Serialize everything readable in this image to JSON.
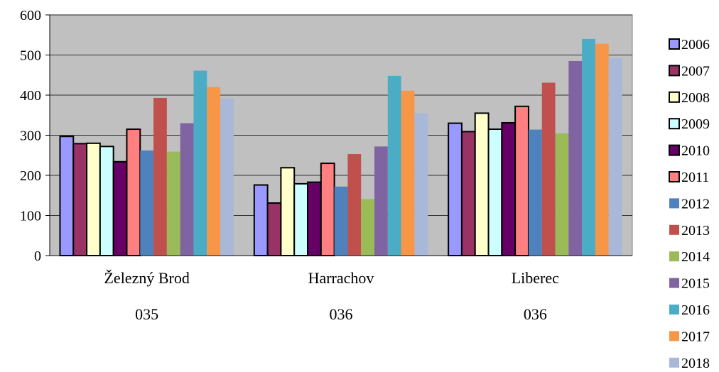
{
  "chart_data": {
    "type": "bar",
    "categories": [
      "Železný Brod",
      "Harrachov",
      "Liberec"
    ],
    "category_codes": [
      "035",
      "036",
      "036"
    ],
    "ylim": [
      0,
      600
    ],
    "yticks": [
      0,
      100,
      200,
      300,
      400,
      500,
      600
    ],
    "grid": true,
    "legend_position": "right",
    "plot_background": "#c0c0c0",
    "series": [
      {
        "name": "2006",
        "color": "#9999ff",
        "outlined": true,
        "values": [
          297,
          176,
          330
        ]
      },
      {
        "name": "2007",
        "color": "#993366",
        "outlined": true,
        "values": [
          279,
          131,
          309
        ]
      },
      {
        "name": "2008",
        "color": "#ffffcc",
        "outlined": true,
        "values": [
          280,
          219,
          355
        ]
      },
      {
        "name": "2009",
        "color": "#ccffff",
        "outlined": true,
        "values": [
          272,
          179,
          315
        ]
      },
      {
        "name": "2010",
        "color": "#660066",
        "outlined": true,
        "values": [
          234,
          183,
          331
        ]
      },
      {
        "name": "2011",
        "color": "#ff8080",
        "outlined": true,
        "values": [
          315,
          230,
          372
        ]
      },
      {
        "name": "2012",
        "color": "#4f81bd",
        "outlined": false,
        "values": [
          262,
          172,
          314
        ]
      },
      {
        "name": "2013",
        "color": "#c0504d",
        "outlined": false,
        "values": [
          393,
          253,
          431
        ]
      },
      {
        "name": "2014",
        "color": "#9bbb59",
        "outlined": false,
        "values": [
          259,
          141,
          305
        ]
      },
      {
        "name": "2015",
        "color": "#8064a2",
        "outlined": false,
        "values": [
          330,
          272,
          485
        ]
      },
      {
        "name": "2016",
        "color": "#4bacc6",
        "outlined": false,
        "values": [
          461,
          448,
          540
        ]
      },
      {
        "name": "2017",
        "color": "#f79646",
        "outlined": false,
        "values": [
          420,
          411,
          528
        ]
      },
      {
        "name": "2018",
        "color": "#a9b8d8",
        "outlined": false,
        "values": [
          392,
          355,
          492
        ]
      }
    ]
  }
}
